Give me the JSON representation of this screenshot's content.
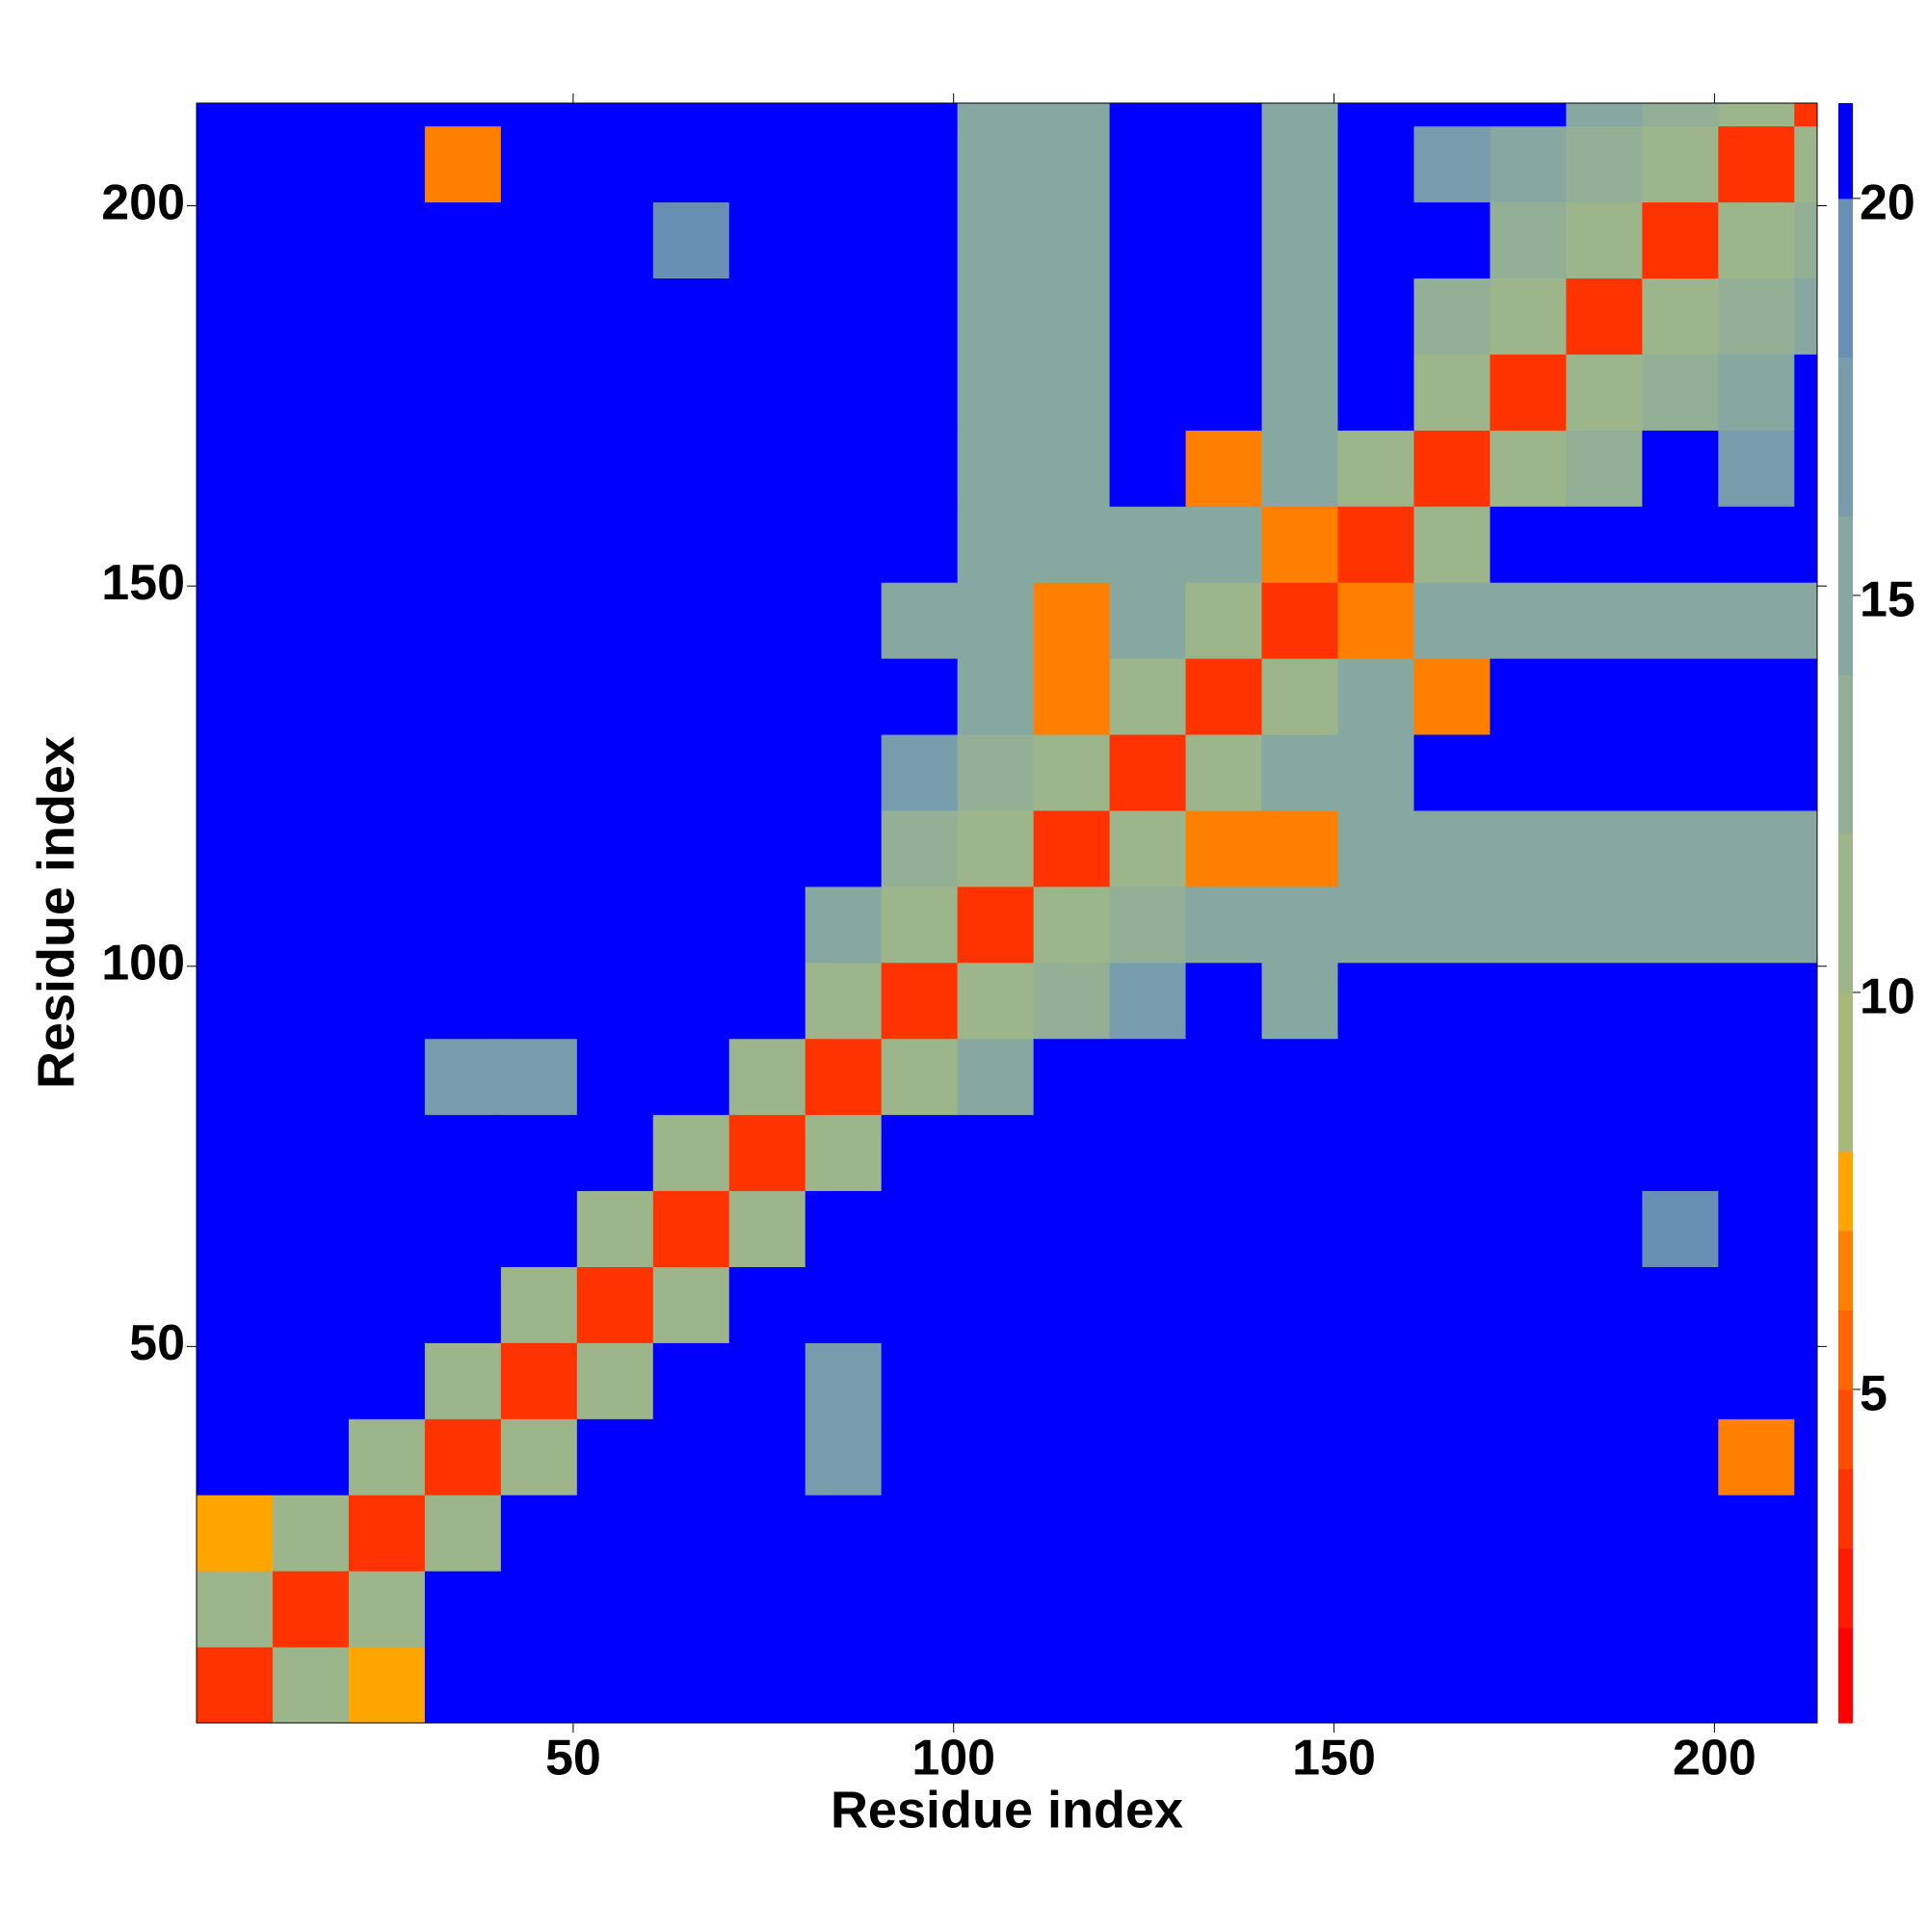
{
  "chart_data": {
    "type": "heatmap",
    "x_label": "Residue index",
    "y_label": "Residue index",
    "xlim": [
      0.5,
      213.5
    ],
    "ylim": [
      0.5,
      213.5
    ],
    "xticks": [
      50,
      100,
      150,
      200
    ],
    "yticks": [
      50,
      100,
      150,
      200
    ],
    "x_edges": [
      0.5,
      10.5,
      20.5,
      30.5,
      40.5,
      50.5,
      60.5,
      70.5,
      80.5,
      90.5,
      100.5,
      110.5,
      120.5,
      130.5,
      140.5,
      150.5,
      160.5,
      170.5,
      180.5,
      190.5,
      200.5,
      210.5,
      213.5
    ],
    "y_edges": [
      0.5,
      10.5,
      20.5,
      30.5,
      40.5,
      50.5,
      60.5,
      70.5,
      80.5,
      90.5,
      100.5,
      110.5,
      120.5,
      130.5,
      140.5,
      150.5,
      160.5,
      170.5,
      180.5,
      190.5,
      200.5,
      210.5,
      213.5
    ],
    "z": [
      [
        3,
        11,
        7,
        21,
        21,
        21,
        21,
        21,
        21,
        21,
        21,
        21,
        21,
        21,
        21,
        21,
        21,
        21,
        21,
        21,
        21,
        21
      ],
      [
        11,
        3,
        11,
        21,
        21,
        21,
        21,
        21,
        21,
        21,
        21,
        21,
        21,
        21,
        21,
        21,
        21,
        21,
        21,
        21,
        21,
        21
      ],
      [
        7,
        11,
        3,
        11,
        21,
        21,
        21,
        21,
        21,
        21,
        21,
        21,
        21,
        21,
        21,
        21,
        21,
        21,
        21,
        21,
        21,
        21
      ],
      [
        21,
        21,
        11,
        3,
        11,
        21,
        21,
        21,
        16,
        21,
        21,
        21,
        21,
        21,
        21,
        21,
        21,
        21,
        21,
        21,
        6,
        21
      ],
      [
        21,
        21,
        21,
        11,
        3,
        11,
        21,
        21,
        16,
        21,
        21,
        21,
        21,
        21,
        21,
        21,
        21,
        21,
        21,
        21,
        21,
        21
      ],
      [
        21,
        21,
        21,
        21,
        11,
        3,
        11,
        21,
        21,
        21,
        21,
        21,
        21,
        21,
        21,
        21,
        21,
        21,
        21,
        21,
        21,
        21
      ],
      [
        21,
        21,
        21,
        21,
        21,
        11,
        3,
        11,
        21,
        21,
        21,
        21,
        21,
        21,
        21,
        21,
        21,
        21,
        21,
        19,
        21,
        21
      ],
      [
        21,
        21,
        21,
        21,
        21,
        21,
        11,
        3,
        11,
        21,
        21,
        21,
        21,
        21,
        21,
        21,
        21,
        21,
        21,
        21,
        21,
        21
      ],
      [
        21,
        21,
        21,
        16,
        16,
        21,
        21,
        11,
        3,
        11,
        15,
        21,
        21,
        21,
        21,
        21,
        21,
        21,
        21,
        21,
        21,
        21
      ],
      [
        21,
        21,
        21,
        21,
        21,
        21,
        21,
        21,
        11,
        3,
        11,
        12,
        16,
        21,
        15,
        21,
        21,
        21,
        21,
        21,
        21,
        21
      ],
      [
        21,
        21,
        21,
        21,
        21,
        21,
        21,
        21,
        15,
        11,
        3,
        11,
        13,
        14,
        14,
        14,
        14,
        14,
        14,
        14,
        14,
        15
      ],
      [
        21,
        21,
        21,
        21,
        21,
        21,
        21,
        21,
        21,
        12,
        11,
        3,
        11,
        6,
        6,
        14,
        14,
        14,
        14,
        14,
        14,
        15
      ],
      [
        21,
        21,
        21,
        21,
        21,
        21,
        21,
        21,
        21,
        16,
        13,
        11,
        3,
        11,
        14,
        15,
        21,
        21,
        21,
        21,
        21,
        21
      ],
      [
        21,
        21,
        21,
        21,
        21,
        21,
        21,
        21,
        21,
        21,
        14,
        6,
        11,
        3,
        11,
        14,
        6,
        21,
        21,
        21,
        21,
        21
      ],
      [
        21,
        21,
        21,
        21,
        21,
        21,
        21,
        21,
        21,
        15,
        14,
        6,
        14,
        11,
        3,
        6,
        14,
        14,
        14,
        14,
        14,
        15
      ],
      [
        21,
        21,
        21,
        21,
        21,
        21,
        21,
        21,
        21,
        21,
        14,
        14,
        15,
        14,
        6,
        3,
        11,
        21,
        21,
        21,
        21,
        21
      ],
      [
        21,
        21,
        21,
        21,
        21,
        21,
        21,
        21,
        21,
        21,
        14,
        14,
        21,
        6,
        14,
        11,
        3,
        11,
        13,
        21,
        16,
        21
      ],
      [
        21,
        21,
        21,
        21,
        21,
        21,
        21,
        21,
        21,
        21,
        14,
        14,
        21,
        21,
        14,
        21,
        11,
        3,
        11,
        12,
        15,
        21
      ],
      [
        21,
        21,
        21,
        21,
        21,
        21,
        21,
        21,
        21,
        21,
        14,
        14,
        21,
        21,
        14,
        21,
        13,
        11,
        3,
        11,
        12,
        14
      ],
      [
        21,
        21,
        21,
        21,
        21,
        21,
        19,
        21,
        21,
        21,
        14,
        14,
        21,
        21,
        14,
        21,
        21,
        12,
        11,
        3,
        11,
        12
      ],
      [
        21,
        21,
        21,
        6,
        21,
        21,
        21,
        21,
        21,
        21,
        14,
        14,
        21,
        21,
        14,
        21,
        16,
        15,
        12,
        11,
        3,
        11
      ],
      [
        21,
        21,
        21,
        21,
        21,
        21,
        21,
        21,
        21,
        21,
        15,
        15,
        21,
        21,
        15,
        21,
        21,
        21,
        14,
        12,
        11,
        3
      ]
    ],
    "clim": [
      0.8,
      21.2
    ],
    "cticks": [
      5,
      10,
      15,
      20
    ],
    "levels": [
      0.8,
      2,
      3,
      4,
      5,
      6,
      7,
      8,
      10,
      12,
      14,
      16,
      18,
      20,
      21.2
    ],
    "colors": [
      "#ff0000",
      "#ff1a00",
      "#ff3300",
      "#ff4d00",
      "#ff6600",
      "#ff8000",
      "#ffa500",
      "#a8b87a",
      "#9db58a",
      "#93b096",
      "#86a8a0",
      "#779cab",
      "#6a8fb5",
      "#0000ff"
    ]
  }
}
